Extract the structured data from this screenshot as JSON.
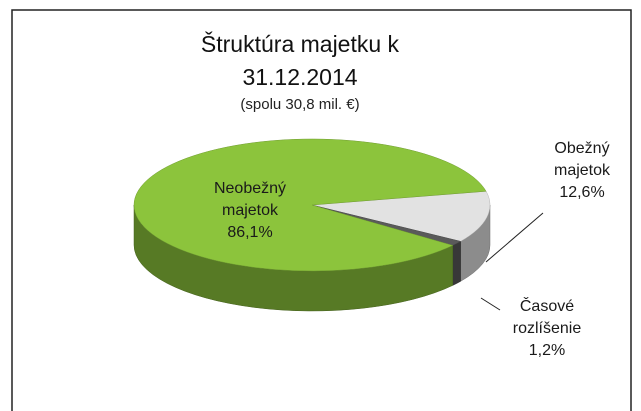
{
  "chart_data": {
    "type": "pie3d",
    "title": "Štruktúra majetku k 31.12.2014",
    "subtitle": "(spolu 30,8 mil. €)",
    "categories": [
      "Obežný majetok",
      "Časové rozlíšenie",
      "Neobežný majetok"
    ],
    "values": [
      12.6,
      1.2,
      86.1
    ],
    "value_labels": [
      "12,6%",
      "1,2%",
      "86,1%"
    ],
    "colors": [
      "#e2e2e2",
      "#5a5a5a",
      "#8cc43c"
    ]
  }
}
